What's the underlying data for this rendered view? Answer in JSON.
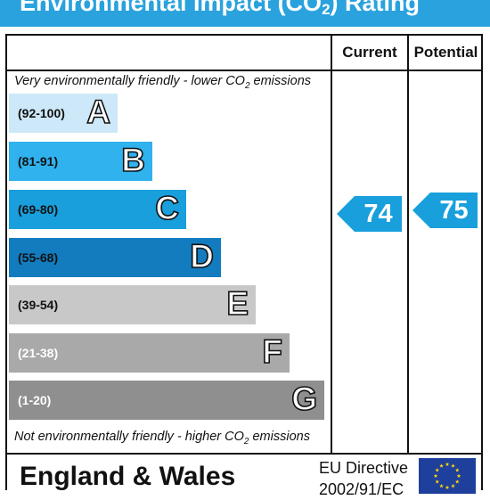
{
  "title": {
    "prefix": "Environmental Impact (CO",
    "sub": "2",
    "suffix": ") Rating"
  },
  "columns": {
    "current": "Current",
    "potential": "Potential"
  },
  "notes": {
    "top": {
      "prefix": "Very environmentally friendly - lower CO",
      "sub": "2",
      "suffix": " emissions"
    },
    "bottom": {
      "prefix": "Not environmentally friendly - higher CO",
      "sub": "2",
      "suffix": " emissions"
    }
  },
  "bands": [
    {
      "range": "(92-100)",
      "letter": "A",
      "color": "#cde8f8",
      "text_color": "#111111"
    },
    {
      "range": "(81-91)",
      "letter": "B",
      "color": "#2fb2ee",
      "text_color": "#111111"
    },
    {
      "range": "(69-80)",
      "letter": "C",
      "color": "#189fdc",
      "text_color": "#111111"
    },
    {
      "range": "(55-68)",
      "letter": "D",
      "color": "#127cbf",
      "text_color": "#111111"
    },
    {
      "range": "(39-54)",
      "letter": "E",
      "color": "#c8c8c8",
      "text_color": "#111111"
    },
    {
      "range": "(21-38)",
      "letter": "F",
      "color": "#a9a9a9",
      "text_color": "#ffffff"
    },
    {
      "range": "(1-20)",
      "letter": "G",
      "color": "#8f8f8f",
      "text_color": "#ffffff"
    }
  ],
  "ratings": {
    "current": {
      "value": "74",
      "color": "#189fdc"
    },
    "potential": {
      "value": "75",
      "color": "#189fdc"
    }
  },
  "footer": {
    "region": "England & Wales",
    "directive_line1": "EU Directive",
    "directive_line2": "2002/91/EC",
    "flag_color": "#1f3f9c",
    "star_color": "#ffd700"
  }
}
